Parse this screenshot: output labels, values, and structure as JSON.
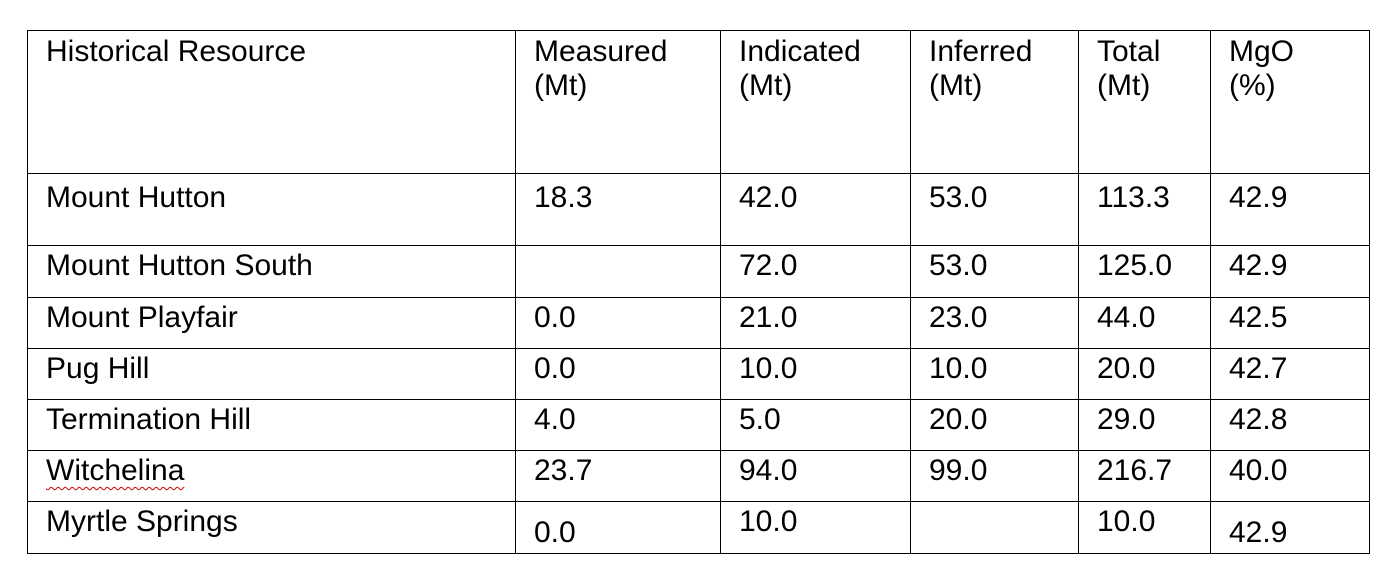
{
  "table": {
    "headers": [
      "Historical Resource",
      "Measured\n(Mt)",
      "Indicated\n(Mt)",
      "Inferred\n(Mt)",
      "Total\n(Mt)",
      "MgO\n(%)"
    ],
    "rows": [
      [
        "Mount Hutton",
        "18.3",
        "42.0",
        "53.0",
        "113.3",
        "42.9"
      ],
      [
        "Mount Hutton South",
        "",
        "72.0",
        "53.0",
        "125.0",
        "42.9"
      ],
      [
        "Mount Playfair",
        "0.0",
        "21.0",
        "23.0",
        "44.0",
        "42.5"
      ],
      [
        "Pug Hill",
        "0.0",
        "10.0",
        "10.0",
        "20.0",
        "42.7"
      ],
      [
        "Termination Hill",
        "4.0",
        "5.0",
        "20.0",
        "29.0",
        "42.8"
      ],
      [
        "Witchelina",
        "23.7",
        "94.0",
        "99.0",
        "216.7",
        "40.0"
      ],
      [
        "Myrtle Springs",
        "0.0",
        "10.0",
        "",
        "10.0",
        "42.9"
      ]
    ]
  }
}
